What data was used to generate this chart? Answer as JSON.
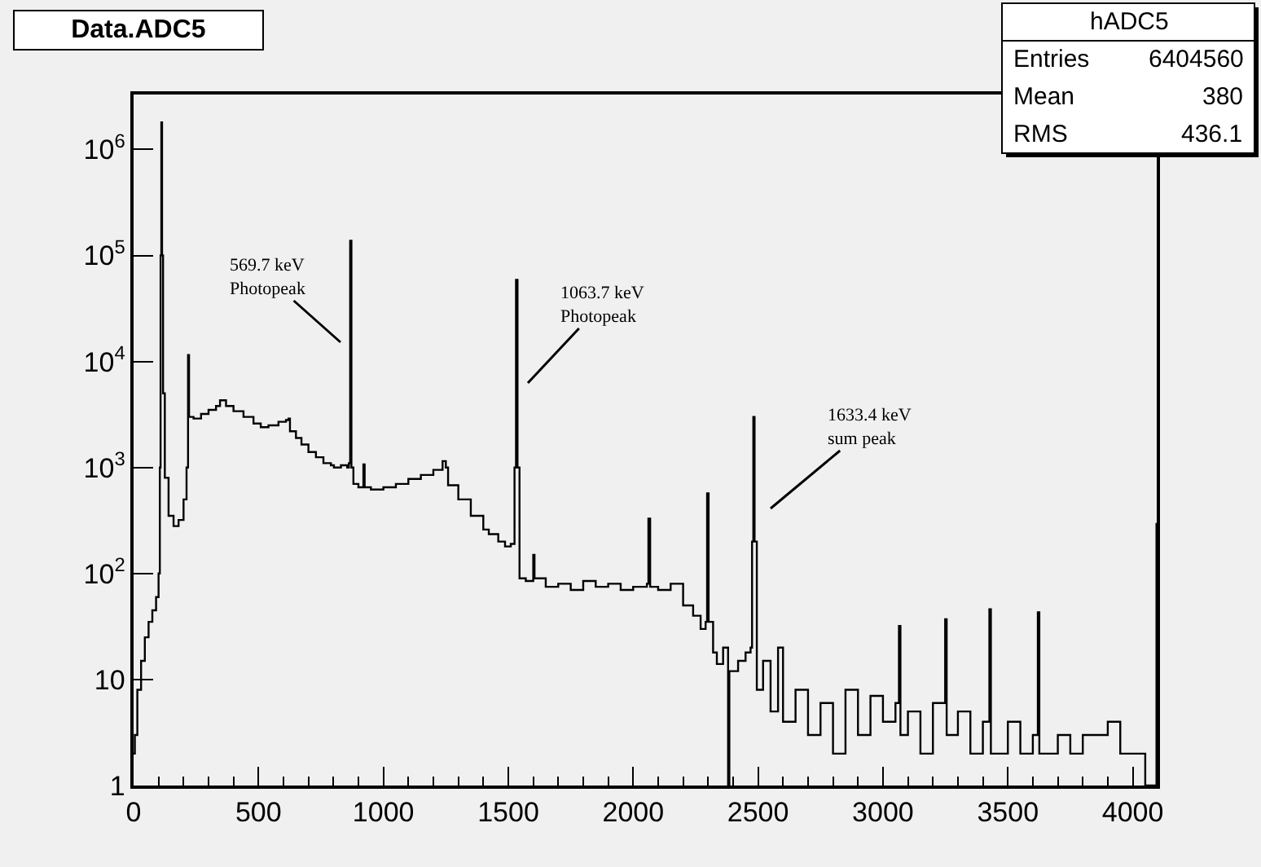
{
  "chart_data": {
    "type": "step",
    "title": "Data.ADC5",
    "x": [
      0,
      5,
      15,
      30,
      45,
      60,
      75,
      90,
      100,
      105,
      108,
      111,
      114,
      118,
      125,
      140,
      160,
      180,
      200,
      212,
      218,
      222,
      240,
      270,
      300,
      330,
      346,
      370,
      400,
      440,
      480,
      509,
      540,
      580,
      610,
      620,
      626,
      650,
      672,
      700,
      730,
      760,
      790,
      802,
      830,
      855,
      862,
      867,
      872,
      880,
      900,
      915,
      920,
      925,
      950,
      1000,
      1050,
      1100,
      1150,
      1200,
      1237,
      1250,
      1259,
      1300,
      1350,
      1400,
      1422,
      1460,
      1487,
      1510,
      1525,
      1531,
      1537,
      1545,
      1570,
      1600,
      1605,
      1650,
      1700,
      1750,
      1800,
      1850,
      1900,
      1950,
      2000,
      2055,
      2061,
      2068,
      2100,
      2150,
      2200,
      2240,
      2270,
      2290,
      2296,
      2302,
      2320,
      2335,
      2360,
      2380,
      2385,
      2420,
      2450,
      2470,
      2476,
      2481,
      2486,
      2495,
      2520,
      2550,
      2580,
      2600,
      2650,
      2700,
      2750,
      2800,
      2850,
      2900,
      2950,
      3000,
      3050,
      3064,
      3070,
      3100,
      3150,
      3200,
      3249,
      3255,
      3300,
      3350,
      3400,
      3426,
      3432,
      3500,
      3550,
      3600,
      3620,
      3626,
      3700,
      3750,
      3800,
      3900,
      3950,
      4000,
      4048,
      4050,
      4090,
      4095
    ],
    "series": [
      {
        "color": "#000000",
        "values": [
          2,
          3,
          8,
          15,
          25,
          35,
          45,
          60,
          100,
          1000,
          100000,
          1800000,
          100000,
          5000,
          800,
          350,
          280,
          320,
          500,
          1000,
          11500,
          3000,
          2900,
          3200,
          3500,
          3800,
          4300,
          3800,
          3400,
          3000,
          2600,
          2400,
          2500,
          2700,
          2800,
          2900,
          2200,
          1900,
          1650,
          1400,
          1250,
          1100,
          1050,
          1000,
          1050,
          1000,
          1100,
          138000,
          1000,
          700,
          650,
          650,
          1070,
          650,
          620,
          650,
          700,
          780,
          850,
          950,
          1150,
          1000,
          680,
          500,
          350,
          260,
          235,
          200,
          180,
          190,
          1000,
          59000,
          1000,
          90,
          85,
          150,
          90,
          75,
          80,
          70,
          85,
          75,
          80,
          70,
          75,
          80,
          330,
          75,
          70,
          80,
          50,
          40,
          30,
          35,
          570,
          35,
          18,
          14,
          20,
          1,
          12,
          15,
          18,
          20,
          200,
          3000,
          200,
          8,
          15,
          5,
          20,
          4,
          8,
          3,
          6,
          2,
          8,
          3,
          7,
          4,
          6,
          32,
          3,
          5,
          2,
          6,
          37,
          3,
          5,
          2,
          4,
          46,
          2,
          4,
          2,
          3,
          43,
          2,
          3,
          2,
          3,
          4,
          2,
          2,
          2,
          1,
          1,
          300
        ]
      }
    ],
    "xlim": [
      0,
      4096
    ],
    "xticks": [
      0,
      {
        "value": 100,
        "label": null
      },
      {
        "value": 200,
        "label": null
      },
      {
        "value": 300,
        "label": null
      },
      {
        "value": 400,
        "label": null
      },
      500,
      {
        "value": 600,
        "label": null
      },
      {
        "value": 700,
        "label": null
      },
      {
        "value": 800,
        "label": null
      },
      {
        "value": 900,
        "label": null
      },
      1000,
      {
        "value": 1100,
        "label": null
      },
      {
        "value": 1200,
        "label": null
      },
      {
        "value": 1300,
        "label": null
      },
      {
        "value": 1400,
        "label": null
      },
      1500,
      {
        "value": 1600,
        "label": null
      },
      {
        "value": 1700,
        "label": null
      },
      {
        "value": 1800,
        "label": null
      },
      {
        "value": 1900,
        "label": null
      },
      2000,
      {
        "value": 2100,
        "label": null
      },
      {
        "value": 2200,
        "label": null
      },
      {
        "value": 2300,
        "label": null
      },
      {
        "value": 2400,
        "label": null
      },
      2500,
      {
        "value": 2600,
        "label": null
      },
      {
        "value": 2700,
        "label": null
      },
      {
        "value": 2800,
        "label": null
      },
      {
        "value": 2900,
        "label": null
      },
      3000,
      {
        "value": 3100,
        "label": null
      },
      {
        "value": 3200,
        "label": null
      },
      {
        "value": 3300,
        "label": null
      },
      {
        "value": 3400,
        "label": null
      },
      3500,
      {
        "value": 3600,
        "label": null
      },
      {
        "value": 3700,
        "label": null
      },
      {
        "value": 3800,
        "label": null
      },
      {
        "value": 3900,
        "label": null
      },
      4000
    ],
    "ylim": [
      1,
      3300000
    ],
    "yticks": [
      1,
      10,
      {
        "value": 100,
        "label": "10$^{2}$"
      },
      {
        "value": 1000,
        "label": "10$^{3}$"
      },
      {
        "value": 10000,
        "label": "10$^{4}$"
      },
      {
        "value": 100000,
        "label": "10$^{5}$"
      },
      {
        "value": 1000000,
        "label": "10$^{6}$"
      }
    ],
    "log": "y",
    "grid": false,
    "legend": false,
    "annotations": [
      "569.7 keV\nPhotopeak",
      "1063.7 keV\nPhotopeak",
      "1633.4 keV\nsum peak",
      "hADC5",
      "Entries 6404560",
      "Mean 380",
      "RMS 436.1"
    ]
  }
}
